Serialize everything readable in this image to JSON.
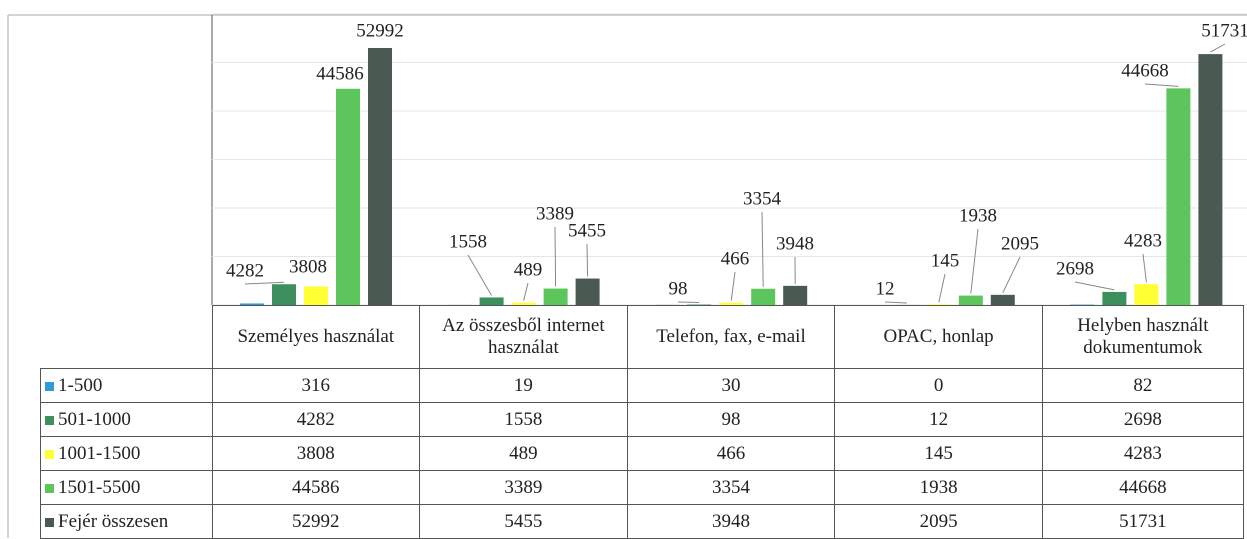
{
  "chart_data": {
    "type": "bar",
    "categories": [
      "Személyes használat",
      "Az összesből internet használat",
      "Telefon, fax, e-mail",
      "OPAC, honlap",
      "Helyben használt dokumentumok"
    ],
    "series": [
      {
        "name": "1-500",
        "color": "#2e9bd6",
        "values": [
          316,
          19,
          30,
          0,
          82
        ]
      },
      {
        "name": "501-1000",
        "color": "#3d8f5e",
        "values": [
          4282,
          1558,
          98,
          12,
          2698
        ]
      },
      {
        "name": "1001-1500",
        "color": "#ffff33",
        "values": [
          3808,
          489,
          466,
          145,
          4283
        ]
      },
      {
        "name": "1501-5500",
        "color": "#5cc55c",
        "values": [
          44586,
          3389,
          3354,
          1938,
          44668
        ]
      },
      {
        "name": "Fejér összesen",
        "color": "#4a5a52",
        "values": [
          52992,
          5455,
          3948,
          2095,
          51731
        ]
      }
    ],
    "ylim": [
      0,
      60000
    ],
    "yticks": [
      0,
      10000,
      20000,
      30000,
      40000,
      50000,
      60000
    ],
    "grid": true
  }
}
